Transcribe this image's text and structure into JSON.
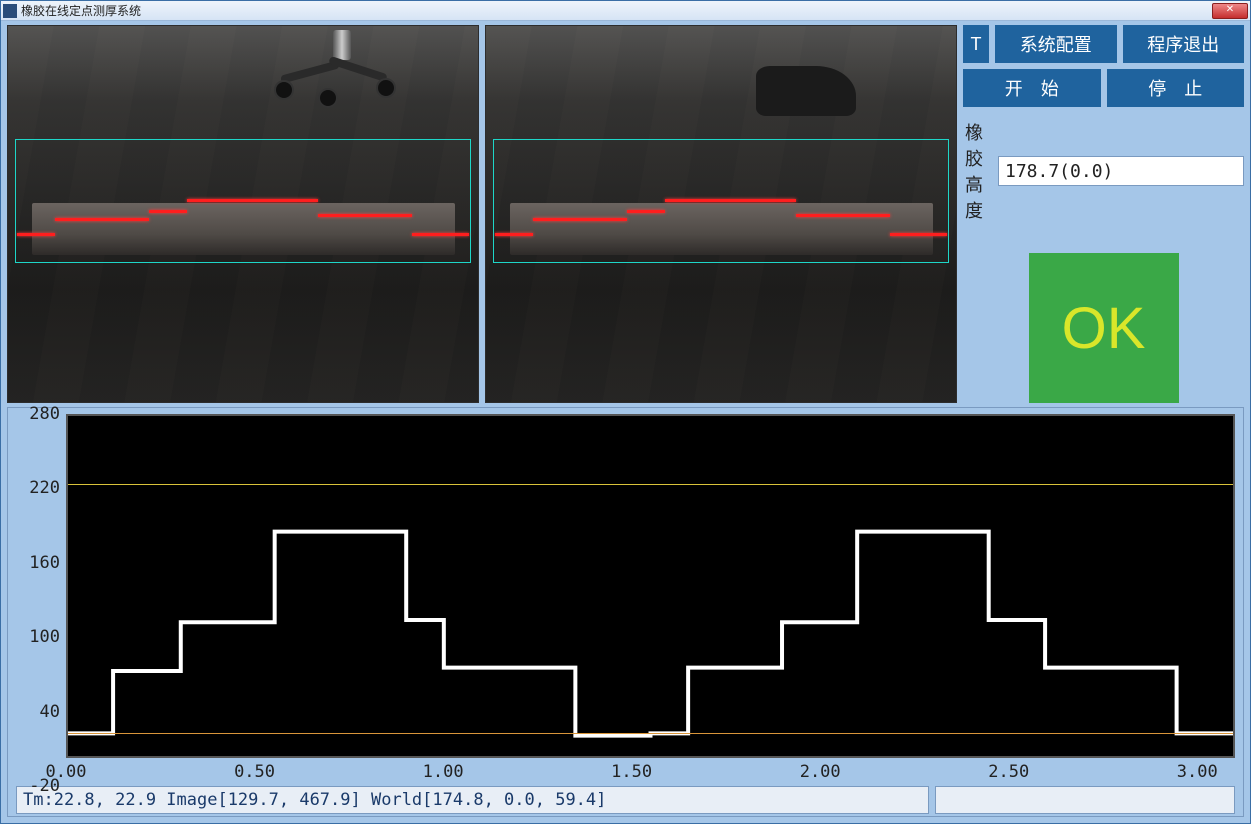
{
  "window": {
    "title": "橡胶在线定点测厚系统"
  },
  "controls": {
    "t_marker": "T",
    "config_label": "系统配置",
    "exit_label": "程序退出",
    "start_label": "开　始",
    "stop_label": "停　止"
  },
  "height": {
    "label": "橡胶高度",
    "value": "178.7(0.0)"
  },
  "status": {
    "text": "OK",
    "bg_color": "#3aa847",
    "fg_color": "#d9e62a"
  },
  "status_bar": {
    "left": "Tm:22.8, 22.9 Image[129.7, 467.9] World[174.8,   0.0,  59.4]",
    "right": ""
  },
  "camera": {
    "roi": {
      "left_pct": 1.5,
      "top_pct": 30,
      "width_pct": 97,
      "height_pct": 33
    },
    "object": {
      "top_pct": 47,
      "height_pct": 14
    },
    "laser_segments": [
      {
        "left_pct": 2,
        "width_pct": 8,
        "top_pct": 55
      },
      {
        "left_pct": 10,
        "width_pct": 20,
        "top_pct": 51
      },
      {
        "left_pct": 30,
        "width_pct": 8,
        "top_pct": 49
      },
      {
        "left_pct": 38,
        "width_pct": 28,
        "top_pct": 46
      },
      {
        "left_pct": 66,
        "width_pct": 20,
        "top_pct": 50
      },
      {
        "left_pct": 86,
        "width_pct": 12,
        "top_pct": 55
      }
    ]
  },
  "chart": {
    "type": "line",
    "background_color": "#000000",
    "grid_color": "#555555",
    "y_ticks": [
      -20,
      40,
      100,
      160,
      220,
      280
    ],
    "ylim": [
      -20,
      280
    ],
    "x_ticks": [
      "0.00",
      "0.50",
      "1.00",
      "1.50",
      "2.00",
      "2.50",
      "3.00"
    ],
    "xlim": [
      0.0,
      3.1
    ],
    "ref_lines": [
      {
        "y": 220,
        "color": "#d9c23a"
      },
      {
        "y": 0,
        "color": "#d9953a"
      }
    ],
    "profile_color": "#ffffff",
    "profile_points": [
      [
        0.0,
        0
      ],
      [
        0.12,
        0
      ],
      [
        0.12,
        55
      ],
      [
        0.3,
        55
      ],
      [
        0.3,
        98
      ],
      [
        0.55,
        98
      ],
      [
        0.55,
        178
      ],
      [
        0.9,
        178
      ],
      [
        0.9,
        100
      ],
      [
        1.0,
        100
      ],
      [
        1.0,
        58
      ],
      [
        1.35,
        58
      ],
      [
        1.35,
        -2
      ],
      [
        1.55,
        -2
      ],
      [
        1.55,
        0
      ],
      [
        1.65,
        0
      ],
      [
        1.65,
        58
      ],
      [
        1.9,
        58
      ],
      [
        1.9,
        98
      ],
      [
        2.1,
        98
      ],
      [
        2.1,
        178
      ],
      [
        2.45,
        178
      ],
      [
        2.45,
        100
      ],
      [
        2.6,
        100
      ],
      [
        2.6,
        58
      ],
      [
        2.95,
        58
      ],
      [
        2.95,
        0
      ],
      [
        3.1,
        0
      ]
    ]
  },
  "colors": {
    "panel_bg": "#a5c6e8",
    "button_bg": "#1f639e",
    "button_fg": "#ffffff",
    "roi_border": "#1ed6c8",
    "laser": "#ff1e1e"
  }
}
